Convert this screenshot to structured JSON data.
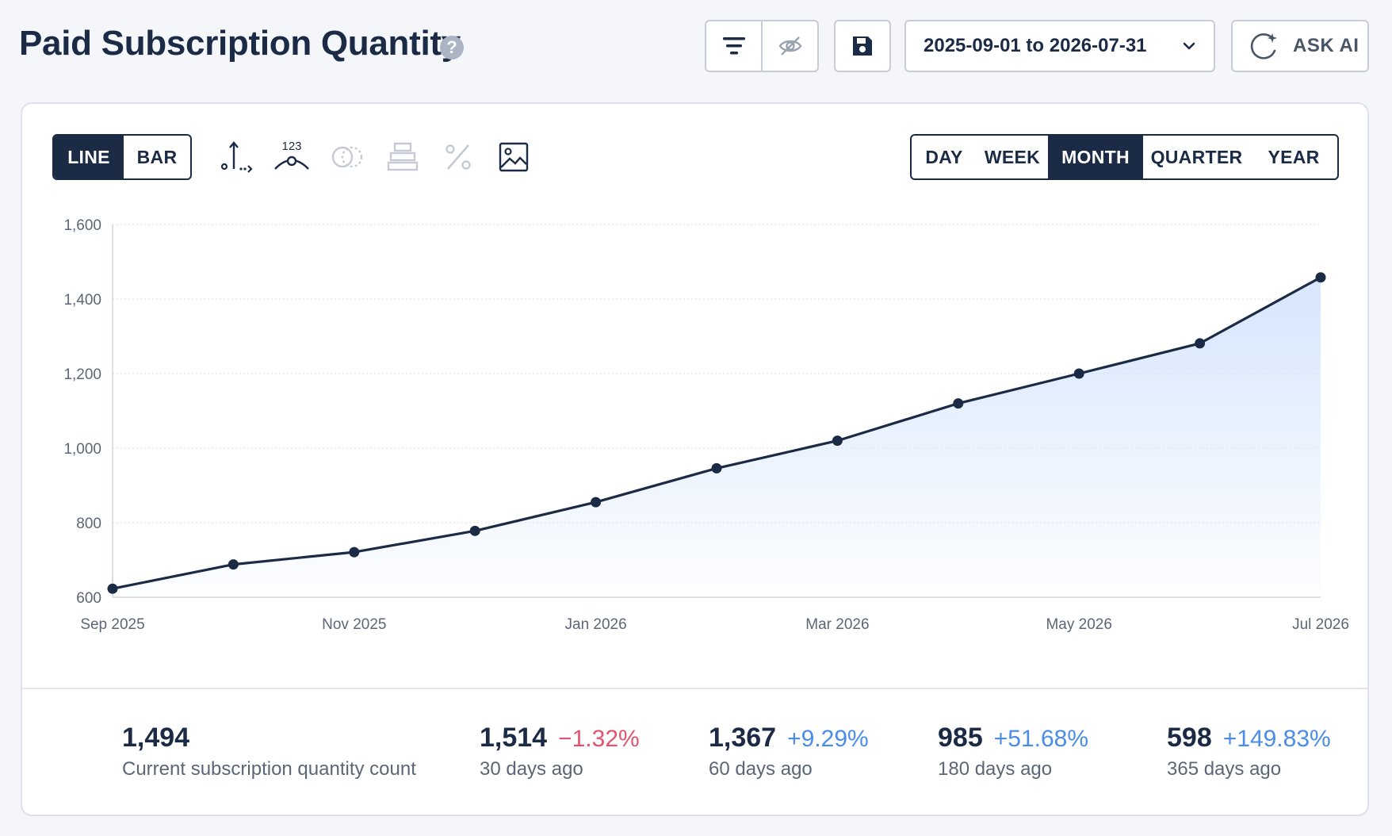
{
  "header": {
    "title": "Paid Subscription Quantity",
    "help_glyph": "?",
    "date_range": "2025-09-01 to 2026-07-31",
    "ask_ai_label": "ASK AI"
  },
  "toolbar": {
    "chart_types": [
      {
        "label": "LINE",
        "active": true
      },
      {
        "label": "BAR",
        "active": false
      }
    ],
    "tool_icons": [
      "axis-toggle-icon",
      "data-labels-icon",
      "compare-icon",
      "stack-icon",
      "percent-icon",
      "image-export-icon"
    ],
    "periods": [
      {
        "label": "DAY",
        "active": false
      },
      {
        "label": "WEEK",
        "active": false
      },
      {
        "label": "MONTH",
        "active": true
      },
      {
        "label": "QUARTER",
        "active": false
      },
      {
        "label": "YEAR",
        "active": false
      }
    ]
  },
  "chart_data": {
    "type": "area",
    "x": [
      "2025-09",
      "2025-10",
      "2025-11",
      "2025-12",
      "2026-01",
      "2026-02",
      "2026-03",
      "2026-04",
      "2026-05",
      "2026-06",
      "2026-07"
    ],
    "x_tick_labels": [
      "Sep 2025",
      "Nov 2025",
      "Jan 2026",
      "Mar 2026",
      "May 2026",
      "Jul 2026"
    ],
    "x_tick_indices": [
      0,
      2,
      4,
      6,
      8,
      10
    ],
    "values": [
      623,
      688,
      721,
      778,
      855,
      946,
      1020,
      1120,
      1200,
      1281,
      1458
    ],
    "ylim": [
      600,
      1600
    ],
    "y_ticks": [
      600,
      800,
      1000,
      1200,
      1400,
      1600
    ],
    "y_tick_labels": [
      "600",
      "800",
      "1,000",
      "1,200",
      "1,400",
      "1,600"
    ],
    "grid": true,
    "line_color": "#1c2b45",
    "fill_color": "#d6e6fd"
  },
  "stats": [
    {
      "value": "1,494",
      "change": "",
      "label": "Current subscription quantity count",
      "trend": "none"
    },
    {
      "value": "1,514",
      "change": "−1.32%",
      "label": "30 days ago",
      "trend": "neg"
    },
    {
      "value": "1,367",
      "change": "+9.29%",
      "label": "60 days ago",
      "trend": "pos"
    },
    {
      "value": "985",
      "change": "+51.68%",
      "label": "180 days ago",
      "trend": "pos"
    },
    {
      "value": "598",
      "change": "+149.83%",
      "label": "365 days ago",
      "trend": "pos"
    }
  ]
}
